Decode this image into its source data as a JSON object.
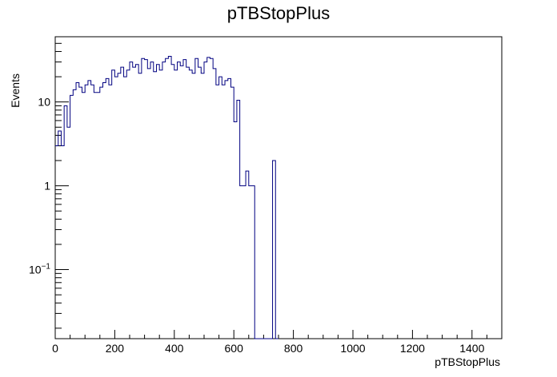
{
  "chart_data": {
    "type": "histogram",
    "title": "pTBStopPlus",
    "xlabel": "pTBStopPlus",
    "ylabel": "Events",
    "xlim": [
      0,
      1500
    ],
    "ylim": [
      0.015,
      60
    ],
    "y_scale": "log",
    "grid": false,
    "x_ticks": [
      0,
      200,
      400,
      600,
      800,
      1000,
      1200,
      1400
    ],
    "x_tick_labels": [
      "0",
      "200",
      "400",
      "600",
      "800",
      "1000",
      "1200",
      "1400"
    ],
    "y_ticks": [
      {
        "value": 0.1,
        "base": "10",
        "exp": "−1"
      },
      {
        "value": 1,
        "label": "1"
      },
      {
        "value": 10,
        "label": "10"
      }
    ],
    "bin_width": 10,
    "bin_start": 0,
    "series": [
      {
        "color": "#000080",
        "values": [
          3,
          4.5,
          3,
          9,
          5,
          12,
          14,
          17,
          15,
          13,
          16,
          18,
          16,
          13,
          13,
          15,
          17,
          19,
          16,
          24,
          20,
          22,
          26,
          20,
          24,
          30,
          26,
          28,
          22,
          33,
          32,
          25,
          30,
          23,
          28,
          24,
          30,
          33,
          35,
          28,
          24,
          30,
          27,
          32,
          26,
          24,
          22,
          33,
          26,
          22,
          30,
          34,
          33,
          25,
          16,
          20,
          16,
          18,
          19,
          15,
          5.8,
          10.5,
          1,
          1,
          1.5,
          1,
          1,
          0,
          0,
          0,
          0,
          0,
          0,
          2,
          0
        ]
      }
    ]
  }
}
